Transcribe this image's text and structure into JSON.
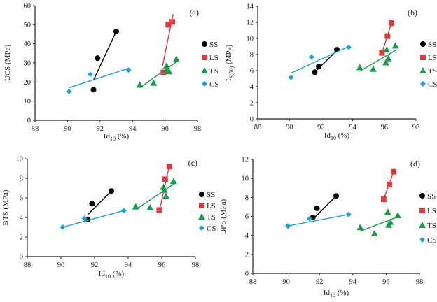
{
  "chart_data": [
    {
      "type": "scatter",
      "panel": "(a)",
      "xlabel": "Id10 (%)",
      "xlabel_main": "Id",
      "xlabel_sub": "10",
      "xlabel_tail": " (%)",
      "ylabel": "UCS (MPa)",
      "xlim": [
        88,
        98
      ],
      "ylim": [
        0,
        60
      ],
      "xticks": [
        88,
        90,
        92,
        94,
        96,
        98
      ],
      "yticks": [
        0,
        10,
        20,
        30,
        40,
        50,
        60
      ],
      "legend_position": "right",
      "series": [
        {
          "name": "SS",
          "marker": "circle",
          "color": "#000000",
          "points": [
            [
              91.6,
              16
            ],
            [
              91.85,
              32.5
            ],
            [
              93.0,
              46.5
            ]
          ],
          "trend": [
            [
              91.6,
              21
            ],
            [
              93.0,
              46.5
            ]
          ]
        },
        {
          "name": "LS",
          "marker": "square",
          "color": "#e03a3e",
          "points": [
            [
              95.9,
              25
            ],
            [
              96.2,
              50
            ],
            [
              96.45,
              51.5
            ]
          ],
          "trend": [
            [
              95.85,
              28.5
            ],
            [
              96.5,
              55.5
            ]
          ]
        },
        {
          "name": "TS",
          "marker": "triangle",
          "color": "#1e9a4e",
          "points": [
            [
              94.45,
              18.5
            ],
            [
              95.3,
              19.5
            ],
            [
              96.1,
              28.5
            ],
            [
              96.15,
              26
            ],
            [
              96.25,
              25.5
            ],
            [
              96.7,
              32
            ]
          ],
          "trend": [
            [
              94.45,
              17
            ],
            [
              96.7,
              30.5
            ]
          ]
        },
        {
          "name": "CS",
          "marker": "diamond",
          "color": "#1fa0d8",
          "points": [
            [
              90.1,
              15
            ],
            [
              91.4,
              24
            ],
            [
              93.75,
              26.3
            ]
          ],
          "trend": [
            [
              90.1,
              17
            ],
            [
              93.75,
              27.2
            ]
          ]
        }
      ]
    },
    {
      "type": "scatter",
      "panel": "(b)",
      "xlabel": "Id10 (%)",
      "xlabel_main": "Id",
      "xlabel_sub": "10",
      "xlabel_tail": " (%)",
      "ylabel": "IS(50) (MPa)",
      "ylabel_main": "I",
      "ylabel_sub": "S(50)",
      "ylabel_tail": " (MPa)",
      "xlim": [
        88,
        98
      ],
      "ylim": [
        0,
        14
      ],
      "xticks": [
        88,
        90,
        92,
        94,
        96,
        98
      ],
      "yticks": [
        0,
        2,
        4,
        6,
        8,
        10,
        12,
        14
      ],
      "legend_position": "right",
      "series": [
        {
          "name": "SS",
          "marker": "circle",
          "color": "#000000",
          "points": [
            [
              91.6,
              5.8
            ],
            [
              91.85,
              6.5
            ],
            [
              93.0,
              8.6
            ]
          ],
          "trend": [
            [
              91.6,
              5.8
            ],
            [
              93.0,
              8.5
            ]
          ]
        },
        {
          "name": "LS",
          "marker": "square",
          "color": "#e03a3e",
          "points": [
            [
              95.85,
              8.2
            ],
            [
              96.2,
              10.3
            ],
            [
              96.45,
              11.9
            ]
          ],
          "trend": [
            [
              95.85,
              8.2
            ],
            [
              96.45,
              11.9
            ]
          ]
        },
        {
          "name": "TS",
          "marker": "triangle",
          "color": "#1e9a4e",
          "points": [
            [
              94.45,
              6.4
            ],
            [
              95.3,
              6.2
            ],
            [
              96.1,
              7.0
            ],
            [
              96.15,
              8.6
            ],
            [
              96.25,
              7.5
            ],
            [
              96.7,
              9.1
            ]
          ],
          "trend": [
            [
              94.5,
              6.0
            ],
            [
              96.7,
              8.5
            ]
          ]
        },
        {
          "name": "CS",
          "marker": "diamond",
          "color": "#1fa0d8",
          "points": [
            [
              90.1,
              5.15
            ],
            [
              91.4,
              7.7
            ],
            [
              93.75,
              8.9
            ]
          ],
          "trend": [
            [
              90.1,
              5.7
            ],
            [
              93.75,
              9.0
            ]
          ]
        }
      ]
    },
    {
      "type": "scatter",
      "panel": "(c)",
      "xlabel": "Id10 (%)",
      "xlabel_main": "Id",
      "xlabel_sub": "10",
      "xlabel_tail": " (%)",
      "ylabel": "BTS (MPa)",
      "xlim": [
        88,
        98
      ],
      "ylim": [
        0,
        10
      ],
      "xticks": [
        88,
        90,
        92,
        94,
        96,
        98
      ],
      "yticks": [
        0,
        2,
        4,
        6,
        8,
        10
      ],
      "legend_position": "right",
      "series": [
        {
          "name": "SS",
          "marker": "circle",
          "color": "#000000",
          "points": [
            [
              91.6,
              3.8
            ],
            [
              91.85,
              5.4
            ],
            [
              93.0,
              6.7
            ]
          ],
          "trend": [
            [
              91.6,
              4.3
            ],
            [
              93.0,
              6.7
            ]
          ]
        },
        {
          "name": "LS",
          "marker": "square",
          "color": "#e03a3e",
          "points": [
            [
              95.85,
              4.75
            ],
            [
              96.2,
              7.9
            ],
            [
              96.45,
              9.2
            ]
          ],
          "trend": [
            [
              95.85,
              4.6
            ],
            [
              96.45,
              9.3
            ]
          ]
        },
        {
          "name": "TS",
          "marker": "triangle",
          "color": "#1e9a4e",
          "points": [
            [
              94.45,
              5.1
            ],
            [
              95.3,
              5.0
            ],
            [
              96.1,
              7.1
            ],
            [
              96.15,
              6.8
            ],
            [
              96.25,
              6.2
            ],
            [
              96.7,
              7.7
            ]
          ],
          "trend": [
            [
              94.45,
              4.8
            ],
            [
              96.7,
              7.4
            ]
          ]
        },
        {
          "name": "CS",
          "marker": "diamond",
          "color": "#1fa0d8",
          "points": [
            [
              90.1,
              3.0
            ],
            [
              91.4,
              3.9
            ],
            [
              93.75,
              4.7
            ]
          ],
          "trend": [
            [
              90.1,
              3.0
            ],
            [
              93.75,
              4.7
            ]
          ]
        }
      ]
    },
    {
      "type": "scatter",
      "panel": "(d)",
      "xlabel": "Id10 (%)",
      "xlabel_main": "Id",
      "xlabel_sub": "10",
      "xlabel_tail": " (%)",
      "ylabel": "BPS (MPa)",
      "xlim": [
        88,
        98
      ],
      "ylim": [
        0,
        12
      ],
      "xticks": [
        88,
        90,
        92,
        94,
        96,
        98
      ],
      "yticks": [
        0,
        2,
        4,
        6,
        8,
        10,
        12
      ],
      "legend_position": "right",
      "series": [
        {
          "name": "SS",
          "marker": "circle",
          "color": "#000000",
          "points": [
            [
              91.6,
              5.9
            ],
            [
              91.85,
              6.85
            ],
            [
              93.0,
              8.15
            ]
          ],
          "trend": [
            [
              91.6,
              5.7
            ],
            [
              93.0,
              8.15
            ]
          ]
        },
        {
          "name": "LS",
          "marker": "square",
          "color": "#e03a3e",
          "points": [
            [
              95.85,
              7.8
            ],
            [
              96.2,
              9.35
            ],
            [
              96.45,
              10.7
            ]
          ],
          "trend": [
            [
              95.85,
              7.8
            ],
            [
              96.45,
              10.7
            ]
          ]
        },
        {
          "name": "TS",
          "marker": "triangle",
          "color": "#1e9a4e",
          "points": [
            [
              94.45,
              4.85
            ],
            [
              95.3,
              4.2
            ],
            [
              96.1,
              6.45
            ],
            [
              96.15,
              5.1
            ],
            [
              96.25,
              5.4
            ],
            [
              96.7,
              6.1
            ]
          ],
          "trend": [
            [
              94.45,
              4.45
            ],
            [
              96.7,
              5.95
            ]
          ]
        },
        {
          "name": "CS",
          "marker": "diamond",
          "color": "#1fa0d8",
          "points": [
            [
              90.1,
              5.0
            ],
            [
              91.4,
              5.75
            ],
            [
              93.75,
              6.2
            ]
          ],
          "trend": [
            [
              90.1,
              5.0
            ],
            [
              93.75,
              6.2
            ]
          ]
        }
      ]
    }
  ]
}
